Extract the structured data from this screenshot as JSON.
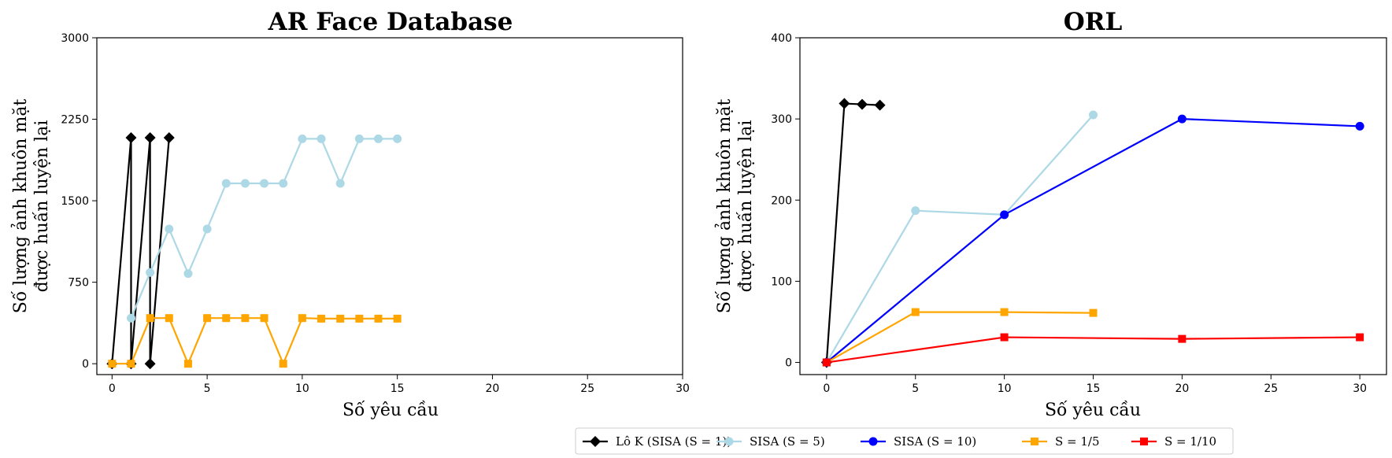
{
  "chart_data": [
    {
      "type": "line",
      "title": "AR Face Database",
      "xlabel": "Số yêu cầu",
      "ylabel": [
        "Số lượng ảnh khuôn mặt",
        "được huấn luyện lại"
      ],
      "xlim": [
        -0.8,
        30
      ],
      "ylim": [
        -100,
        3000
      ],
      "xticks": [
        0,
        5,
        10,
        15,
        20,
        25,
        30
      ],
      "yticks": [
        0,
        750,
        1500,
        2250,
        3000
      ],
      "series": [
        {
          "key": "k",
          "x": [
            0,
            1,
            1,
            2,
            2,
            3
          ],
          "y": [
            0,
            2080,
            0,
            2080,
            0,
            2080
          ]
        },
        {
          "key": "s5",
          "x": [
            1,
            2,
            3,
            4,
            5,
            6,
            7,
            8,
            9,
            10,
            11,
            12,
            13,
            14,
            15
          ],
          "y": [
            420,
            840,
            1240,
            830,
            1240,
            1660,
            1660,
            1660,
            1660,
            2070,
            2070,
            1660,
            2070,
            2070,
            2070
          ]
        },
        {
          "key": "s15",
          "x": [
            0,
            1,
            2,
            3,
            4,
            5,
            6,
            7,
            8,
            9,
            10,
            11,
            12,
            13,
            14,
            15
          ],
          "y": [
            0,
            0,
            420,
            420,
            0,
            420,
            420,
            420,
            420,
            0,
            420,
            415,
            415,
            415,
            415,
            415
          ]
        }
      ]
    },
    {
      "type": "line",
      "title": "ORL",
      "xlabel": "Số yêu cầu",
      "ylabel": [
        "Số lượng ảnh khuôn mặt",
        "được huấn luyện lại"
      ],
      "xlim": [
        -1.5,
        31.5
      ],
      "ylim": [
        -15,
        400
      ],
      "xticks": [
        0,
        5,
        10,
        15,
        20,
        25,
        30
      ],
      "yticks": [
        0,
        100,
        200,
        300,
        400
      ],
      "series": [
        {
          "key": "k",
          "x": [
            0,
            1,
            2,
            3
          ],
          "y": [
            0,
            319,
            318,
            317
          ]
        },
        {
          "key": "s5",
          "x": [
            0,
            5,
            10,
            15
          ],
          "y": [
            0,
            187,
            182,
            305
          ]
        },
        {
          "key": "s10",
          "x": [
            0,
            10,
            20,
            30
          ],
          "y": [
            0,
            182,
            300,
            291
          ]
        },
        {
          "key": "s15",
          "x": [
            0,
            5,
            10,
            15
          ],
          "y": [
            0,
            62,
            62,
            61
          ]
        },
        {
          "key": "s110",
          "x": [
            0,
            10,
            20,
            30
          ],
          "y": [
            0,
            31,
            29,
            31
          ]
        }
      ]
    }
  ],
  "legend": [
    {
      "key": "k",
      "label": "Lô K (SISA (S = 1))",
      "color": "#000000",
      "marker": "diamond"
    },
    {
      "key": "s5",
      "label": "SISA (S = 5)",
      "color": "#add8e6",
      "marker": "circle"
    },
    {
      "key": "s10",
      "label": "SISA (S = 10)",
      "color": "#0000ff",
      "marker": "circle"
    },
    {
      "key": "s15",
      "label": "S = 1/5",
      "color": "#ffa500",
      "marker": "square"
    },
    {
      "key": "s110",
      "label": "S = 1/10",
      "color": "#ff0000",
      "marker": "square"
    }
  ]
}
